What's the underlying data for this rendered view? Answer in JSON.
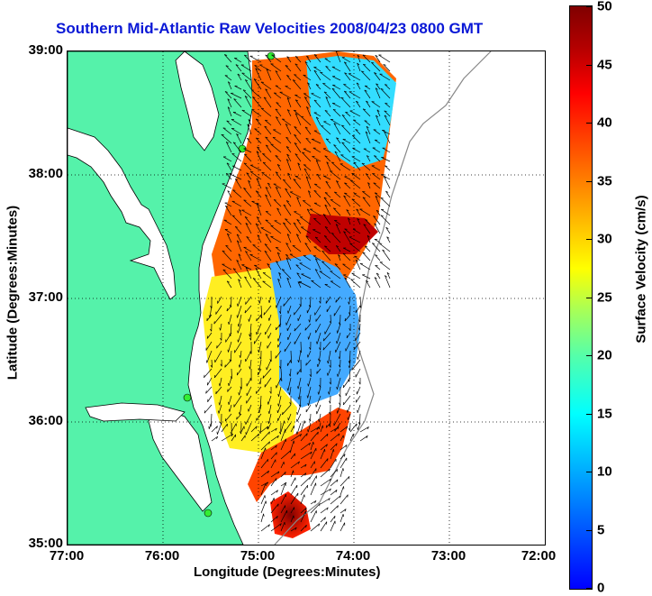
{
  "title": "Southern Mid-Atlantic Raw Velocities 2008/04/23 0800 GMT",
  "xlabel": "Longitude (Degrees:Minutes)",
  "ylabel": "Latitude (Degrees:Minutes)",
  "xticks": [
    "77:00",
    "76:00",
    "75:00",
    "74:00",
    "73:00",
    "72:00"
  ],
  "yticks": [
    "39:00",
    "38:00",
    "37:00",
    "36:00",
    "35:00"
  ],
  "colorbar": {
    "label": "Surface Velocity (cm/s)",
    "ticks": [
      "50",
      "45",
      "40",
      "35",
      "30",
      "25",
      "20",
      "15",
      "10",
      "5",
      "0"
    ],
    "range": [
      0,
      50
    ]
  },
  "colors": {
    "land": "#55f2aa",
    "title": "#0a18d6",
    "grid": "#000000"
  }
}
